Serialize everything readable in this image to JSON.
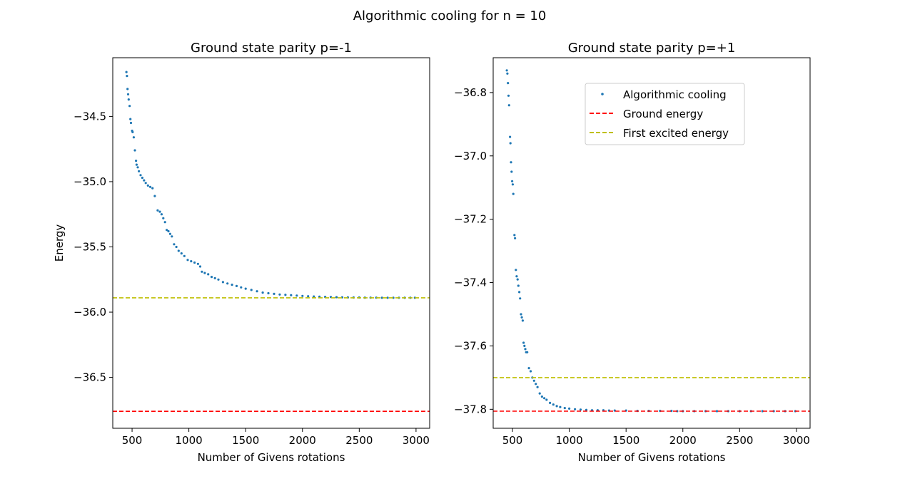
{
  "figure": {
    "suptitle": "Algorithmic cooling for n = 10"
  },
  "chart_data": [
    {
      "type": "scatter",
      "title": "Ground state parity p=-1",
      "xlabel": "Number of Givens rotations",
      "ylabel": "Energy",
      "xlim": [
        330,
        3120
      ],
      "ylim": [
        -36.89,
        -34.05
      ],
      "xticks": [
        500,
        1000,
        1500,
        2000,
        2500,
        3000
      ],
      "yticks": [
        -36.5,
        -36.0,
        -35.5,
        -35.0,
        -34.5
      ],
      "hlines": [
        {
          "name": "Ground energy",
          "y": -36.76,
          "color": "#ff0000"
        },
        {
          "name": "First excited energy",
          "y": -35.89,
          "color": "#bfbf00"
        }
      ],
      "series": [
        {
          "name": "Algorithmic cooling",
          "color": "#1f77b4",
          "points": [
            [
              450,
              -34.16
            ],
            [
              455,
              -34.19
            ],
            [
              460,
              -34.29
            ],
            [
              465,
              -34.33
            ],
            [
              470,
              -34.37
            ],
            [
              478,
              -34.42
            ],
            [
              485,
              -34.52
            ],
            [
              490,
              -34.55
            ],
            [
              500,
              -34.61
            ],
            [
              505,
              -34.62
            ],
            [
              515,
              -34.66
            ],
            [
              525,
              -34.76
            ],
            [
              535,
              -34.84
            ],
            [
              540,
              -34.87
            ],
            [
              550,
              -34.89
            ],
            [
              560,
              -34.92
            ],
            [
              575,
              -34.95
            ],
            [
              590,
              -34.97
            ],
            [
              605,
              -34.99
            ],
            [
              620,
              -35.01
            ],
            [
              640,
              -35.03
            ],
            [
              660,
              -35.04
            ],
            [
              680,
              -35.05
            ],
            [
              700,
              -35.11
            ],
            [
              725,
              -35.22
            ],
            [
              745,
              -35.23
            ],
            [
              760,
              -35.25
            ],
            [
              775,
              -35.28
            ],
            [
              790,
              -35.31
            ],
            [
              805,
              -35.37
            ],
            [
              820,
              -35.38
            ],
            [
              835,
              -35.4
            ],
            [
              850,
              -35.42
            ],
            [
              870,
              -35.48
            ],
            [
              890,
              -35.5
            ],
            [
              910,
              -35.53
            ],
            [
              935,
              -35.55
            ],
            [
              960,
              -35.57
            ],
            [
              990,
              -35.6
            ],
            [
              1020,
              -35.61
            ],
            [
              1050,
              -35.62
            ],
            [
              1080,
              -35.63
            ],
            [
              1100,
              -35.65
            ],
            [
              1115,
              -35.69
            ],
            [
              1140,
              -35.7
            ],
            [
              1170,
              -35.71
            ],
            [
              1200,
              -35.73
            ],
            [
              1230,
              -35.74
            ],
            [
              1260,
              -35.75
            ],
            [
              1300,
              -35.77
            ],
            [
              1340,
              -35.78
            ],
            [
              1380,
              -35.79
            ],
            [
              1420,
              -35.8
            ],
            [
              1460,
              -35.81
            ],
            [
              1500,
              -35.82
            ],
            [
              1550,
              -35.83
            ],
            [
              1600,
              -35.84
            ],
            [
              1650,
              -35.85
            ],
            [
              1700,
              -35.855
            ],
            [
              1750,
              -35.86
            ],
            [
              1800,
              -35.865
            ],
            [
              1850,
              -35.867
            ],
            [
              1900,
              -35.87
            ],
            [
              1950,
              -35.873
            ],
            [
              2000,
              -35.876
            ],
            [
              2050,
              -35.878
            ],
            [
              2100,
              -35.88
            ],
            [
              2150,
              -35.882
            ],
            [
              2200,
              -35.883
            ],
            [
              2250,
              -35.884
            ],
            [
              2300,
              -35.885
            ],
            [
              2350,
              -35.886
            ],
            [
              2400,
              -35.887
            ],
            [
              2450,
              -35.888
            ],
            [
              2500,
              -35.888
            ],
            [
              2550,
              -35.889
            ],
            [
              2600,
              -35.889
            ],
            [
              2650,
              -35.889
            ],
            [
              2700,
              -35.89
            ],
            [
              2750,
              -35.89
            ],
            [
              2800,
              -35.89
            ],
            [
              2850,
              -35.89
            ],
            [
              2900,
              -35.89
            ],
            [
              2950,
              -35.89
            ],
            [
              2990,
              -35.89
            ]
          ]
        }
      ]
    },
    {
      "type": "scatter",
      "title": "Ground state parity p=+1",
      "xlabel": "Number of Givens rotations",
      "ylabel": "",
      "xlim": [
        330,
        3120
      ],
      "ylim": [
        -37.86,
        -36.69
      ],
      "xticks": [
        500,
        1000,
        1500,
        2000,
        2500,
        3000
      ],
      "yticks": [
        -37.8,
        -37.6,
        -37.4,
        -37.2,
        -37.0,
        -36.8
      ],
      "legend": {
        "placement": "upper-right"
      },
      "hlines": [
        {
          "name": "Ground energy",
          "y": -37.806,
          "color": "#ff0000"
        },
        {
          "name": "First excited energy",
          "y": -37.7,
          "color": "#bfbf00"
        }
      ],
      "series": [
        {
          "name": "Algorithmic cooling",
          "color": "#1f77b4",
          "points": [
            [
              450,
              -36.73
            ],
            [
              455,
              -36.74
            ],
            [
              460,
              -36.77
            ],
            [
              465,
              -36.81
            ],
            [
              470,
              -36.84
            ],
            [
              478,
              -36.94
            ],
            [
              482,
              -36.96
            ],
            [
              487,
              -37.02
            ],
            [
              492,
              -37.05
            ],
            [
              497,
              -37.08
            ],
            [
              502,
              -37.09
            ],
            [
              507,
              -37.12
            ],
            [
              517,
              -37.25
            ],
            [
              522,
              -37.26
            ],
            [
              530,
              -37.36
            ],
            [
              537,
              -37.38
            ],
            [
              545,
              -37.39
            ],
            [
              552,
              -37.41
            ],
            [
              560,
              -37.43
            ],
            [
              567,
              -37.45
            ],
            [
              575,
              -37.5
            ],
            [
              582,
              -37.51
            ],
            [
              590,
              -37.52
            ],
            [
              598,
              -37.59
            ],
            [
              605,
              -37.6
            ],
            [
              613,
              -37.61
            ],
            [
              620,
              -37.62
            ],
            [
              630,
              -37.62
            ],
            [
              645,
              -37.67
            ],
            [
              660,
              -37.68
            ],
            [
              675,
              -37.7
            ],
            [
              690,
              -37.71
            ],
            [
              705,
              -37.72
            ],
            [
              720,
              -37.73
            ],
            [
              740,
              -37.75
            ],
            [
              760,
              -37.76
            ],
            [
              780,
              -37.765
            ],
            [
              800,
              -37.77
            ],
            [
              830,
              -37.78
            ],
            [
              860,
              -37.785
            ],
            [
              890,
              -37.79
            ],
            [
              920,
              -37.793
            ],
            [
              960,
              -37.796
            ],
            [
              1000,
              -37.798
            ],
            [
              1050,
              -37.8
            ],
            [
              1100,
              -37.801
            ],
            [
              1150,
              -37.802
            ],
            [
              1200,
              -37.803
            ],
            [
              1250,
              -37.803
            ],
            [
              1300,
              -37.803
            ],
            [
              1350,
              -37.804
            ],
            [
              1400,
              -37.804
            ],
            [
              1500,
              -37.804
            ],
            [
              1600,
              -37.805
            ],
            [
              1700,
              -37.805
            ],
            [
              1800,
              -37.805
            ],
            [
              1900,
              -37.805
            ],
            [
              1950,
              -37.806
            ],
            [
              2000,
              -37.806
            ],
            [
              2100,
              -37.806
            ],
            [
              2200,
              -37.806
            ],
            [
              2300,
              -37.806
            ],
            [
              2400,
              -37.806
            ],
            [
              2500,
              -37.806
            ],
            [
              2600,
              -37.806
            ],
            [
              2700,
              -37.806
            ],
            [
              2800,
              -37.806
            ],
            [
              2900,
              -37.806
            ],
            [
              2990,
              -37.806
            ]
          ]
        }
      ]
    }
  ]
}
